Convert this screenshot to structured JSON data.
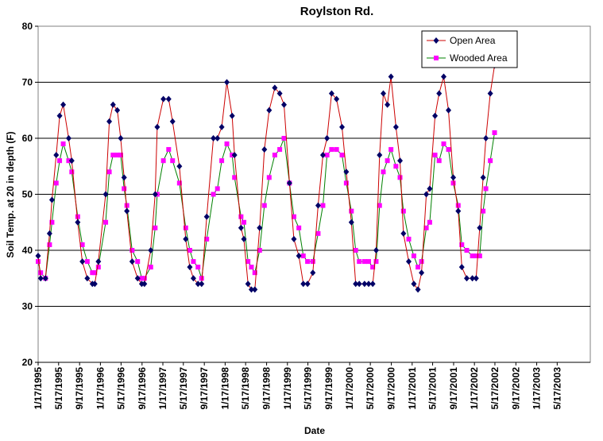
{
  "chart_data": {
    "type": "line",
    "title": "Roylston Rd.",
    "xlabel": "Date",
    "ylabel": "Soil Temp. at 20 in depth (F)",
    "ylim": [
      20,
      80
    ],
    "yticks": [
      "20",
      "30",
      "40",
      "50",
      "60",
      "70",
      "80"
    ],
    "x_start": "1/17/1995",
    "x_end": "11/27/2003",
    "xticks": [
      "1/17/1995",
      "5/17/1995",
      "9/17/1995",
      "1/17/1996",
      "5/17/1996",
      "9/17/1996",
      "1/17/1997",
      "5/17/1997",
      "9/17/1997",
      "1/17/1998",
      "5/17/1998",
      "9/17/1998",
      "1/17/1999",
      "5/17/1999",
      "9/17/1999",
      "1/17/2000",
      "5/17/2000",
      "9/17/2000",
      "1/17/2001",
      "5/17/2001",
      "9/17/2001",
      "1/17/2002",
      "5/17/2002",
      "9/17/2002",
      "1/17/2003",
      "5/17/2003"
    ],
    "grid": "horizontal",
    "legend": "top-right",
    "series": [
      {
        "name": "Open Area",
        "line_color": "#cc0000",
        "marker_color": "#000066",
        "marker": "diamond",
        "points": [
          [
            "1/17/1995",
            39
          ],
          [
            "2/1/1995",
            35
          ],
          [
            "3/1/1995",
            35
          ],
          [
            "3/25/1995",
            43
          ],
          [
            "4/8/1995",
            49
          ],
          [
            "5/3/1995",
            57
          ],
          [
            "5/23/1995",
            64
          ],
          [
            "6/13/1995",
            66
          ],
          [
            "7/15/1995",
            60
          ],
          [
            "8/2/1995",
            56
          ],
          [
            "9/6/1995",
            45
          ],
          [
            "10/3/1995",
            38
          ],
          [
            "11/1/1995",
            35
          ],
          [
            "12/1/1995",
            34
          ],
          [
            "12/15/1995",
            34
          ],
          [
            "1/5/1996",
            38
          ],
          [
            "2/17/1996",
            50
          ],
          [
            "3/9/1996",
            63
          ],
          [
            "3/31/1996",
            66
          ],
          [
            "4/25/1996",
            65
          ],
          [
            "5/15/1996",
            60
          ],
          [
            "6/4/1996",
            53
          ],
          [
            "6/20/1996",
            47
          ],
          [
            "7/21/1996",
            38
          ],
          [
            "8/22/1996",
            35
          ],
          [
            "9/15/1996",
            34
          ],
          [
            "10/1/1996",
            34
          ],
          [
            "11/7/1996",
            40
          ],
          [
            "12/3/1996",
            50
          ],
          [
            "12/15/1996",
            62
          ],
          [
            "1/20/1997",
            67
          ],
          [
            "2/20/1997",
            67
          ],
          [
            "3/15/1997",
            63
          ],
          [
            "4/24/1997",
            55
          ],
          [
            "5/31/1997",
            42
          ],
          [
            "6/24/1997",
            37
          ],
          [
            "7/15/1997",
            35
          ],
          [
            "8/11/1997",
            34
          ],
          [
            "9/1/1997",
            34
          ],
          [
            "10/1/1997",
            46
          ],
          [
            "11/9/1997",
            60
          ],
          [
            "12/3/1997",
            60
          ],
          [
            "12/28/1997",
            62
          ],
          [
            "1/27/1998",
            70
          ],
          [
            "2/27/1998",
            64
          ],
          [
            "3/13/1998",
            57
          ],
          [
            "4/20/1998",
            44
          ],
          [
            "5/7/1998",
            42
          ],
          [
            "5/31/1998",
            34
          ],
          [
            "6/20/1998",
            33
          ],
          [
            "7/10/1998",
            33
          ],
          [
            "8/7/1998",
            44
          ],
          [
            "9/4/1998",
            58
          ],
          [
            "10/2/1998",
            65
          ],
          [
            "11/4/1998",
            69
          ],
          [
            "12/3/1998",
            68
          ],
          [
            "12/28/1998",
            66
          ],
          [
            "1/29/1999",
            52
          ],
          [
            "2/24/1999",
            42
          ],
          [
            "3/25/1999",
            39
          ],
          [
            "4/20/1999",
            34
          ],
          [
            "5/15/1999",
            34
          ],
          [
            "6/15/1999",
            36
          ],
          [
            "7/16/1999",
            48
          ],
          [
            "8/13/1999",
            57
          ],
          [
            "9/6/1999",
            60
          ],
          [
            "10/3/1999",
            68
          ],
          [
            "11/1/1999",
            67
          ],
          [
            "12/3/1999",
            62
          ],
          [
            "12/28/1999",
            54
          ],
          [
            "1/27/2000",
            45
          ],
          [
            "2/21/2000",
            34
          ],
          [
            "3/13/2000",
            34
          ],
          [
            "4/13/2000",
            34
          ],
          [
            "5/7/2000",
            34
          ],
          [
            "5/31/2000",
            34
          ],
          [
            "6/20/2000",
            40
          ],
          [
            "7/10/2000",
            57
          ],
          [
            "8/1/2000",
            68
          ],
          [
            "8/25/2000",
            66
          ],
          [
            "9/15/2000",
            71
          ],
          [
            "10/14/2000",
            62
          ],
          [
            "11/7/2000",
            56
          ],
          [
            "11/27/2000",
            43
          ],
          [
            "12/28/2000",
            38
          ],
          [
            "1/27/2001",
            34
          ],
          [
            "2/20/2001",
            33
          ],
          [
            "3/13/2001",
            36
          ],
          [
            "4/10/2001",
            50
          ],
          [
            "4/30/2001",
            51
          ],
          [
            "5/31/2001",
            64
          ],
          [
            "6/24/2001",
            68
          ],
          [
            "7/21/2001",
            71
          ],
          [
            "8/18/2001",
            65
          ],
          [
            "9/15/2001",
            53
          ],
          [
            "10/14/2001",
            47
          ],
          [
            "11/4/2001",
            37
          ],
          [
            "12/3/2001",
            35
          ],
          [
            "1/5/2002",
            35
          ],
          [
            "1/27/2002",
            35
          ],
          [
            "2/17/2002",
            44
          ],
          [
            "3/9/2002",
            53
          ],
          [
            "3/25/2002",
            60
          ],
          [
            "4/20/2002",
            68
          ],
          [
            "5/15/2002",
            73
          ]
        ]
      },
      {
        "name": "Wooded Area",
        "line_color": "#008000",
        "marker_color": "#ff00ff",
        "marker": "square",
        "points": [
          [
            "1/17/1995",
            38
          ],
          [
            "2/1/1995",
            36
          ],
          [
            "3/1/1995",
            35
          ],
          [
            "3/25/1995",
            41
          ],
          [
            "4/8/1995",
            45
          ],
          [
            "5/3/1995",
            52
          ],
          [
            "5/23/1995",
            56
          ],
          [
            "6/13/1995",
            59
          ],
          [
            "7/15/1995",
            56
          ],
          [
            "8/2/1995",
            54
          ],
          [
            "9/6/1995",
            46
          ],
          [
            "10/3/1995",
            41
          ],
          [
            "11/1/1995",
            38
          ],
          [
            "12/1/1995",
            36
          ],
          [
            "12/15/1995",
            36
          ],
          [
            "1/5/1996",
            37
          ],
          [
            "2/17/1996",
            45
          ],
          [
            "3/9/1996",
            54
          ],
          [
            "3/31/1996",
            57
          ],
          [
            "4/25/1996",
            57
          ],
          [
            "5/15/1996",
            57
          ],
          [
            "6/4/1996",
            51
          ],
          [
            "6/20/1996",
            48
          ],
          [
            "7/21/1996",
            40
          ],
          [
            "8/22/1996",
            38
          ],
          [
            "9/15/1996",
            35
          ],
          [
            "10/1/1996",
            35
          ],
          [
            "11/7/1996",
            37
          ],
          [
            "12/3/1996",
            44
          ],
          [
            "12/15/1996",
            50
          ],
          [
            "1/20/1997",
            56
          ],
          [
            "2/20/1997",
            58
          ],
          [
            "3/15/1997",
            56
          ],
          [
            "4/24/1997",
            52
          ],
          [
            "5/31/1997",
            44
          ],
          [
            "6/24/1997",
            40
          ],
          [
            "7/15/1997",
            38
          ],
          [
            "8/11/1997",
            37
          ],
          [
            "9/1/1997",
            35
          ],
          [
            "10/1/1997",
            42
          ],
          [
            "11/9/1997",
            50
          ],
          [
            "12/3/1997",
            51
          ],
          [
            "12/28/1997",
            56
          ],
          [
            "1/27/1998",
            59
          ],
          [
            "2/27/1998",
            57
          ],
          [
            "3/13/1998",
            53
          ],
          [
            "4/20/1998",
            46
          ],
          [
            "5/7/1998",
            45
          ],
          [
            "5/31/1998",
            38
          ],
          [
            "6/20/1998",
            37
          ],
          [
            "7/10/1998",
            36
          ],
          [
            "8/7/1998",
            40
          ],
          [
            "9/4/1998",
            48
          ],
          [
            "10/2/1998",
            53
          ],
          [
            "11/4/1998",
            57
          ],
          [
            "12/3/1998",
            58
          ],
          [
            "12/28/1998",
            60
          ],
          [
            "1/29/1999",
            52
          ],
          [
            "2/24/1999",
            46
          ],
          [
            "3/25/1999",
            44
          ],
          [
            "4/20/1999",
            39
          ],
          [
            "5/15/1999",
            38
          ],
          [
            "6/15/1999",
            38
          ],
          [
            "7/16/1999",
            43
          ],
          [
            "8/13/1999",
            48
          ],
          [
            "9/6/1999",
            57
          ],
          [
            "10/3/1999",
            58
          ],
          [
            "11/1/1999",
            58
          ],
          [
            "12/3/1999",
            57
          ],
          [
            "12/28/1999",
            52
          ],
          [
            "1/27/2000",
            47
          ],
          [
            "2/21/2000",
            40
          ],
          [
            "3/13/2000",
            38
          ],
          [
            "4/13/2000",
            38
          ],
          [
            "5/7/2000",
            38
          ],
          [
            "5/31/2000",
            37
          ],
          [
            "6/20/2000",
            38
          ],
          [
            "7/10/2000",
            48
          ],
          [
            "8/1/2000",
            54
          ],
          [
            "8/25/2000",
            56
          ],
          [
            "9/15/2000",
            58
          ],
          [
            "10/14/2000",
            55
          ],
          [
            "11/7/2000",
            53
          ],
          [
            "11/27/2000",
            47
          ],
          [
            "12/28/2000",
            42
          ],
          [
            "1/27/2001",
            39
          ],
          [
            "2/20/2001",
            37
          ],
          [
            "3/13/2001",
            38
          ],
          [
            "4/10/2001",
            44
          ],
          [
            "4/30/2001",
            45
          ],
          [
            "5/31/2001",
            57
          ],
          [
            "6/24/2001",
            56
          ],
          [
            "7/21/2001",
            59
          ],
          [
            "8/18/2001",
            58
          ],
          [
            "9/15/2001",
            52
          ],
          [
            "10/14/2001",
            48
          ],
          [
            "11/4/2001",
            41
          ],
          [
            "12/3/2001",
            40
          ],
          [
            "1/5/2002",
            39
          ],
          [
            "1/27/2002",
            39
          ],
          [
            "2/17/2002",
            39
          ],
          [
            "3/9/2002",
            47
          ],
          [
            "3/25/2002",
            51
          ],
          [
            "4/20/2002",
            56
          ],
          [
            "5/15/2002",
            61
          ]
        ]
      }
    ]
  }
}
